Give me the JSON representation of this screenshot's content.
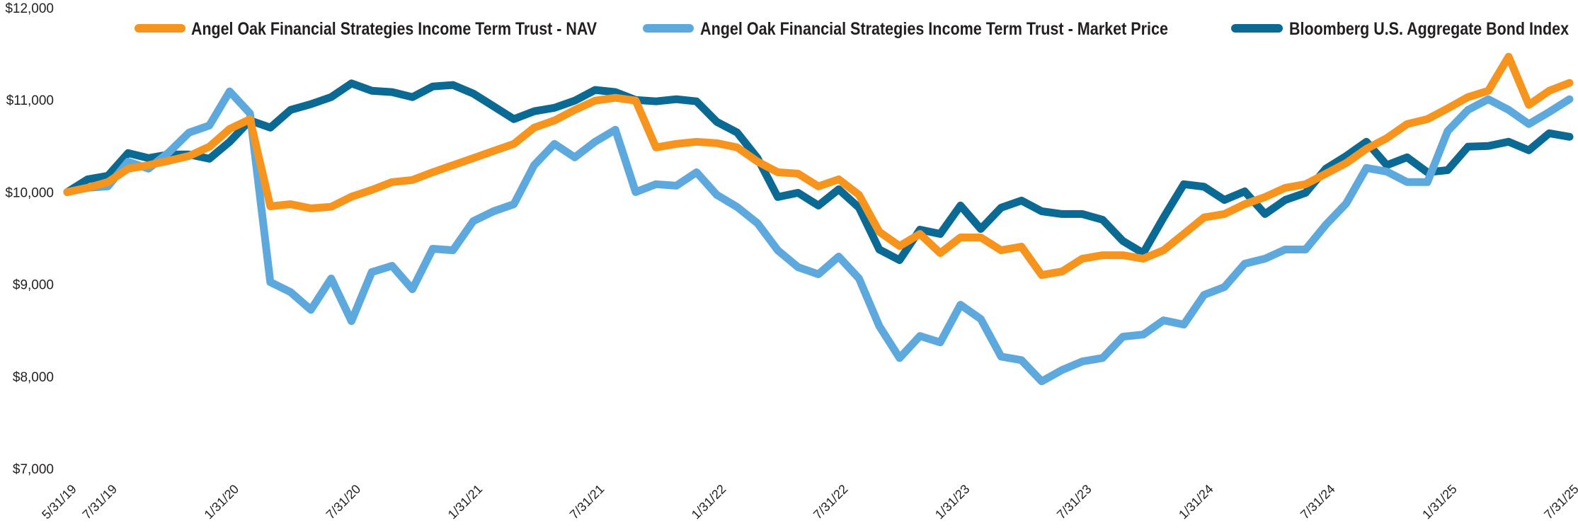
{
  "chart_data": {
    "type": "line",
    "title": "",
    "xlabel": "",
    "ylabel": "",
    "ylim": [
      7000,
      12000
    ],
    "grid": false,
    "legend_position": "top",
    "y_ticks": [
      {
        "value": 12000,
        "label": "$12,000"
      },
      {
        "value": 11000,
        "label": "$11,000"
      },
      {
        "value": 10000,
        "label": "$10,000"
      },
      {
        "value": 9000,
        "label": "$9,000"
      },
      {
        "value": 8000,
        "label": "$8,000"
      },
      {
        "value": 7000,
        "label": "$7,000"
      }
    ],
    "x_ticks": [
      {
        "index": 0,
        "label": "5/31/19"
      },
      {
        "index": 2,
        "label": "7/31/19"
      },
      {
        "index": 8,
        "label": "1/31/20"
      },
      {
        "index": 14,
        "label": "7/31/20"
      },
      {
        "index": 20,
        "label": "1/31/21"
      },
      {
        "index": 26,
        "label": "7/31/21"
      },
      {
        "index": 32,
        "label": "1/31/22"
      },
      {
        "index": 38,
        "label": "7/31/22"
      },
      {
        "index": 44,
        "label": "1/31/23"
      },
      {
        "index": 50,
        "label": "7/31/23"
      },
      {
        "index": 56,
        "label": "1/31/24"
      },
      {
        "index": 62,
        "label": "7/31/24"
      },
      {
        "index": 68,
        "label": "1/31/25"
      },
      {
        "index": 74,
        "label": "7/31/25"
      }
    ],
    "x": [
      "5/31/19",
      "6/30/19",
      "7/31/19",
      "8/31/19",
      "9/30/19",
      "10/31/19",
      "11/30/19",
      "12/31/19",
      "1/31/20",
      "2/29/20",
      "3/31/20",
      "4/30/20",
      "5/31/20",
      "6/30/20",
      "7/31/20",
      "8/31/20",
      "9/30/20",
      "10/31/20",
      "11/30/20",
      "12/31/20",
      "1/31/21",
      "2/28/21",
      "3/31/21",
      "4/30/21",
      "5/31/21",
      "6/30/21",
      "7/31/21",
      "8/31/21",
      "9/30/21",
      "10/31/21",
      "11/30/21",
      "12/31/21",
      "1/31/22",
      "2/28/22",
      "3/31/22",
      "4/30/22",
      "5/31/22",
      "6/30/22",
      "7/31/22",
      "8/31/22",
      "9/30/22",
      "10/31/22",
      "11/30/22",
      "12/31/22",
      "1/31/23",
      "2/28/23",
      "3/31/23",
      "4/30/23",
      "5/31/23",
      "6/30/23",
      "7/31/23",
      "8/31/23",
      "9/30/23",
      "10/31/23",
      "11/30/23",
      "12/31/23",
      "1/31/24",
      "2/29/24",
      "3/31/24",
      "4/30/24",
      "5/31/24",
      "6/30/24",
      "7/31/24",
      "8/31/24",
      "9/30/24",
      "10/31/24",
      "11/30/24",
      "12/31/24",
      "1/31/25",
      "2/28/25",
      "3/31/25",
      "4/30/25",
      "5/31/25",
      "6/30/25",
      "7/31/25"
    ],
    "series": [
      {
        "name": "Angel Oak Financial Strategies Income Term Trust - NAV",
        "color": "#F7941D",
        "values": [
          10000,
          10046,
          10108,
          10254,
          10292,
          10340,
          10392,
          10492,
          10685,
          10790,
          9846,
          9869,
          9823,
          9840,
          9950,
          10023,
          10108,
          10131,
          10215,
          10292,
          10369,
          10446,
          10523,
          10700,
          10777,
          10892,
          10992,
          11023,
          10992,
          10485,
          10523,
          10546,
          10531,
          10485,
          10331,
          10215,
          10200,
          10062,
          10138,
          9969,
          9569,
          9415,
          9546,
          9338,
          9508,
          9508,
          9369,
          9408,
          9100,
          9138,
          9277,
          9315,
          9315,
          9277,
          9369,
          9546,
          9725,
          9762,
          9869,
          9946,
          10046,
          10085,
          10200,
          10315,
          10469,
          10585,
          10738,
          10792,
          10908,
          11031,
          11100,
          11469,
          10946,
          11100,
          11185
        ]
      },
      {
        "name": "Angel Oak Financial Strategies Income Term Trust - Market Price",
        "color": "#5DA9DD",
        "values": [
          10000,
          10046,
          10062,
          10330,
          10254,
          10431,
          10646,
          10723,
          11092,
          10854,
          9023,
          8915,
          8723,
          9062,
          8600,
          9131,
          9200,
          8946,
          9385,
          9369,
          9685,
          9792,
          9869,
          10292,
          10523,
          10377,
          10546,
          10677,
          10000,
          10085,
          10069,
          10215,
          9969,
          9838,
          9662,
          9369,
          9185,
          9108,
          9300,
          9062,
          8546,
          8200,
          8438,
          8369,
          8777,
          8623,
          8215,
          8177,
          7946,
          8069,
          8162,
          8200,
          8431,
          8454,
          8608,
          8562,
          8885,
          8969,
          9223,
          9277,
          9377,
          9377,
          9646,
          9877,
          10262,
          10223,
          10108,
          10108,
          10662,
          10892,
          11008,
          10892,
          10738,
          10869,
          11008
        ]
      },
      {
        "name": "Bloomberg U.S. Aggregate Bond Index",
        "color": "#0B6A94",
        "values": [
          10000,
          10138,
          10177,
          10423,
          10369,
          10408,
          10408,
          10362,
          10546,
          10777,
          10700,
          10892,
          10954,
          11031,
          11180,
          11100,
          11085,
          11031,
          11146,
          11162,
          11069,
          10931,
          10792,
          10877,
          10915,
          10992,
          11108,
          11085,
          11000,
          10985,
          11008,
          10985,
          10762,
          10646,
          10369,
          9946,
          9992,
          9854,
          10031,
          9831,
          9377,
          9262,
          9592,
          9546,
          9854,
          9600,
          9831,
          9908,
          9792,
          9762,
          9762,
          9700,
          9469,
          9338,
          9723,
          10085,
          10058,
          9915,
          10008,
          9762,
          9915,
          9992,
          10254,
          10392,
          10546,
          10292,
          10377,
          10215,
          10238,
          10492,
          10500,
          10546,
          10454,
          10638,
          10600
        ]
      }
    ]
  }
}
